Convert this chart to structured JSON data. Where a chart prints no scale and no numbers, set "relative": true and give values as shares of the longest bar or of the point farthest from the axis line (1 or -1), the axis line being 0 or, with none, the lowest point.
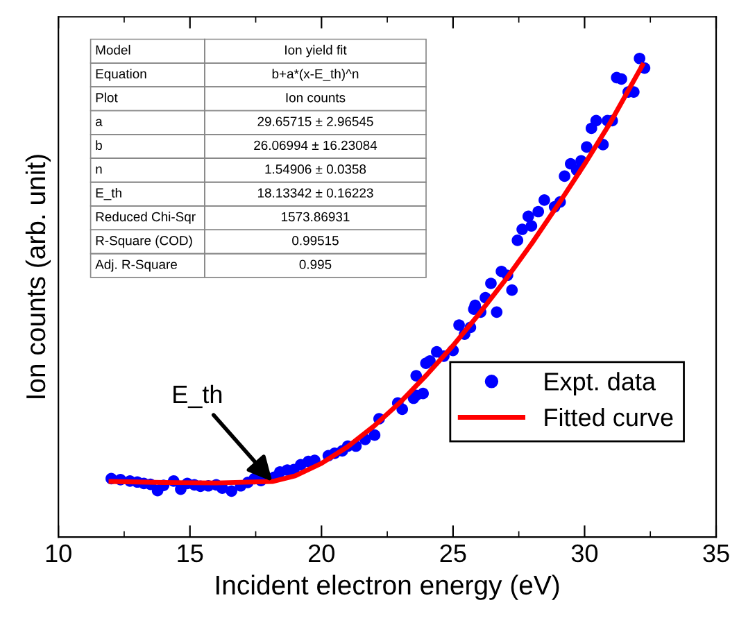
{
  "chart_data": {
    "type": "scatter",
    "xlabel": "Incident electron energy (eV)",
    "ylabel": "Ion counts (arb. unit)",
    "relative": true,
    "xlim": [
      10,
      35
    ],
    "xticks": [
      10,
      15,
      20,
      25,
      30,
      35
    ],
    "grid": false,
    "legend": "bottom right",
    "marker": "circle",
    "line_style": "solid",
    "annotations": [
      {
        "text": "E_th",
        "x": 18.13,
        "y": 0.116
      },
      "Model",
      "Ion yield fit",
      "Equation",
      "b+a*(x-E_th)^n",
      "Plot",
      "Ion counts",
      "a",
      "29.65715 ± 2.96545",
      "b",
      "26.06994 ± 16.23084",
      "n",
      "1.54906 ± 0.0358",
      "E_th",
      "18.13342 ± 0.16223",
      "Reduced Chi-Sqr",
      "1573.86931",
      "R-Square (COD)",
      "0.99515",
      "Adj. R-Square",
      "0.995"
    ],
    "series": [
      {
        "name": "Expt. data",
        "color": "#0000ff",
        "x": [
          12.01,
          12.36,
          12.72,
          13.0,
          13.25,
          13.5,
          13.77,
          14.0,
          14.38,
          14.65,
          14.9,
          15.17,
          15.4,
          15.7,
          16.0,
          16.23,
          16.58,
          16.93,
          17.2,
          17.45,
          17.7,
          18.2,
          18.42,
          18.7,
          18.95,
          19.21,
          19.5,
          19.74,
          20.26,
          20.5,
          20.79,
          21.0,
          21.31,
          21.66,
          22.02,
          22.19,
          22.9,
          23.07,
          23.5,
          23.6,
          23.6,
          23.86,
          23.97,
          24.12,
          24.38,
          24.65,
          25.0,
          25.23,
          25.44,
          25.66,
          25.79,
          25.84,
          26.05,
          26.23,
          26.44,
          26.66,
          26.84,
          27.07,
          27.24,
          27.45,
          27.63,
          27.86,
          27.98,
          28.24,
          28.47,
          28.86,
          29.07,
          29.24,
          29.47,
          29.7,
          29.87,
          30.08,
          30.26,
          30.44,
          30.7,
          30.87,
          31.05,
          31.22,
          31.4,
          31.66,
          31.87,
          32.09,
          32.28
        ],
        "values": [
          0.122,
          0.12,
          0.117,
          0.115,
          0.112,
          0.11,
          0.097,
          0.108,
          0.117,
          0.1,
          0.112,
          0.109,
          0.106,
          0.107,
          0.109,
          0.102,
          0.096,
          0.107,
          0.114,
          0.122,
          0.118,
          0.125,
          0.136,
          0.14,
          0.141,
          0.151,
          0.158,
          0.16,
          0.17,
          0.175,
          0.18,
          0.19,
          0.19,
          0.204,
          0.213,
          0.247,
          0.28,
          0.267,
          0.29,
          0.337,
          0.296,
          0.3,
          0.363,
          0.368,
          0.387,
          0.378,
          0.39,
          0.443,
          0.424,
          0.438,
          0.476,
          0.484,
          0.47,
          0.5,
          0.53,
          0.47,
          0.555,
          0.547,
          0.516,
          0.62,
          0.643,
          0.67,
          0.65,
          0.68,
          0.704,
          0.69,
          0.7,
          0.754,
          0.78,
          0.767,
          0.786,
          0.815,
          0.854,
          0.87,
          0.82,
          0.87,
          0.87,
          0.96,
          0.957,
          0.93,
          0.93,
          1.0,
          0.98
        ]
      },
      {
        "name": "Fitted curve",
        "type": "line",
        "marker": "none",
        "color": "#ff0000",
        "x": [
          12,
          14,
          16,
          18.13,
          19,
          20,
          21,
          22,
          23,
          24,
          25,
          26,
          27,
          28,
          29,
          30,
          31,
          32.2
        ],
        "values": [
          0.116,
          0.114,
          0.113,
          0.116,
          0.128,
          0.154,
          0.189,
          0.232,
          0.282,
          0.339,
          0.4,
          0.467,
          0.538,
          0.614,
          0.695,
          0.779,
          0.868,
          0.986
        ]
      }
    ]
  }
}
